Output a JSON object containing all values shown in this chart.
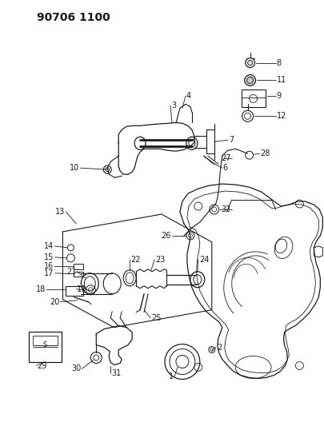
{
  "title": "90706 1100",
  "bg_color": "#ffffff",
  "line_color": "#1a1a1a",
  "label_fontsize": 7.0,
  "title_fontsize": 10,
  "fig_width": 4.05,
  "fig_height": 5.33,
  "dpi": 100
}
